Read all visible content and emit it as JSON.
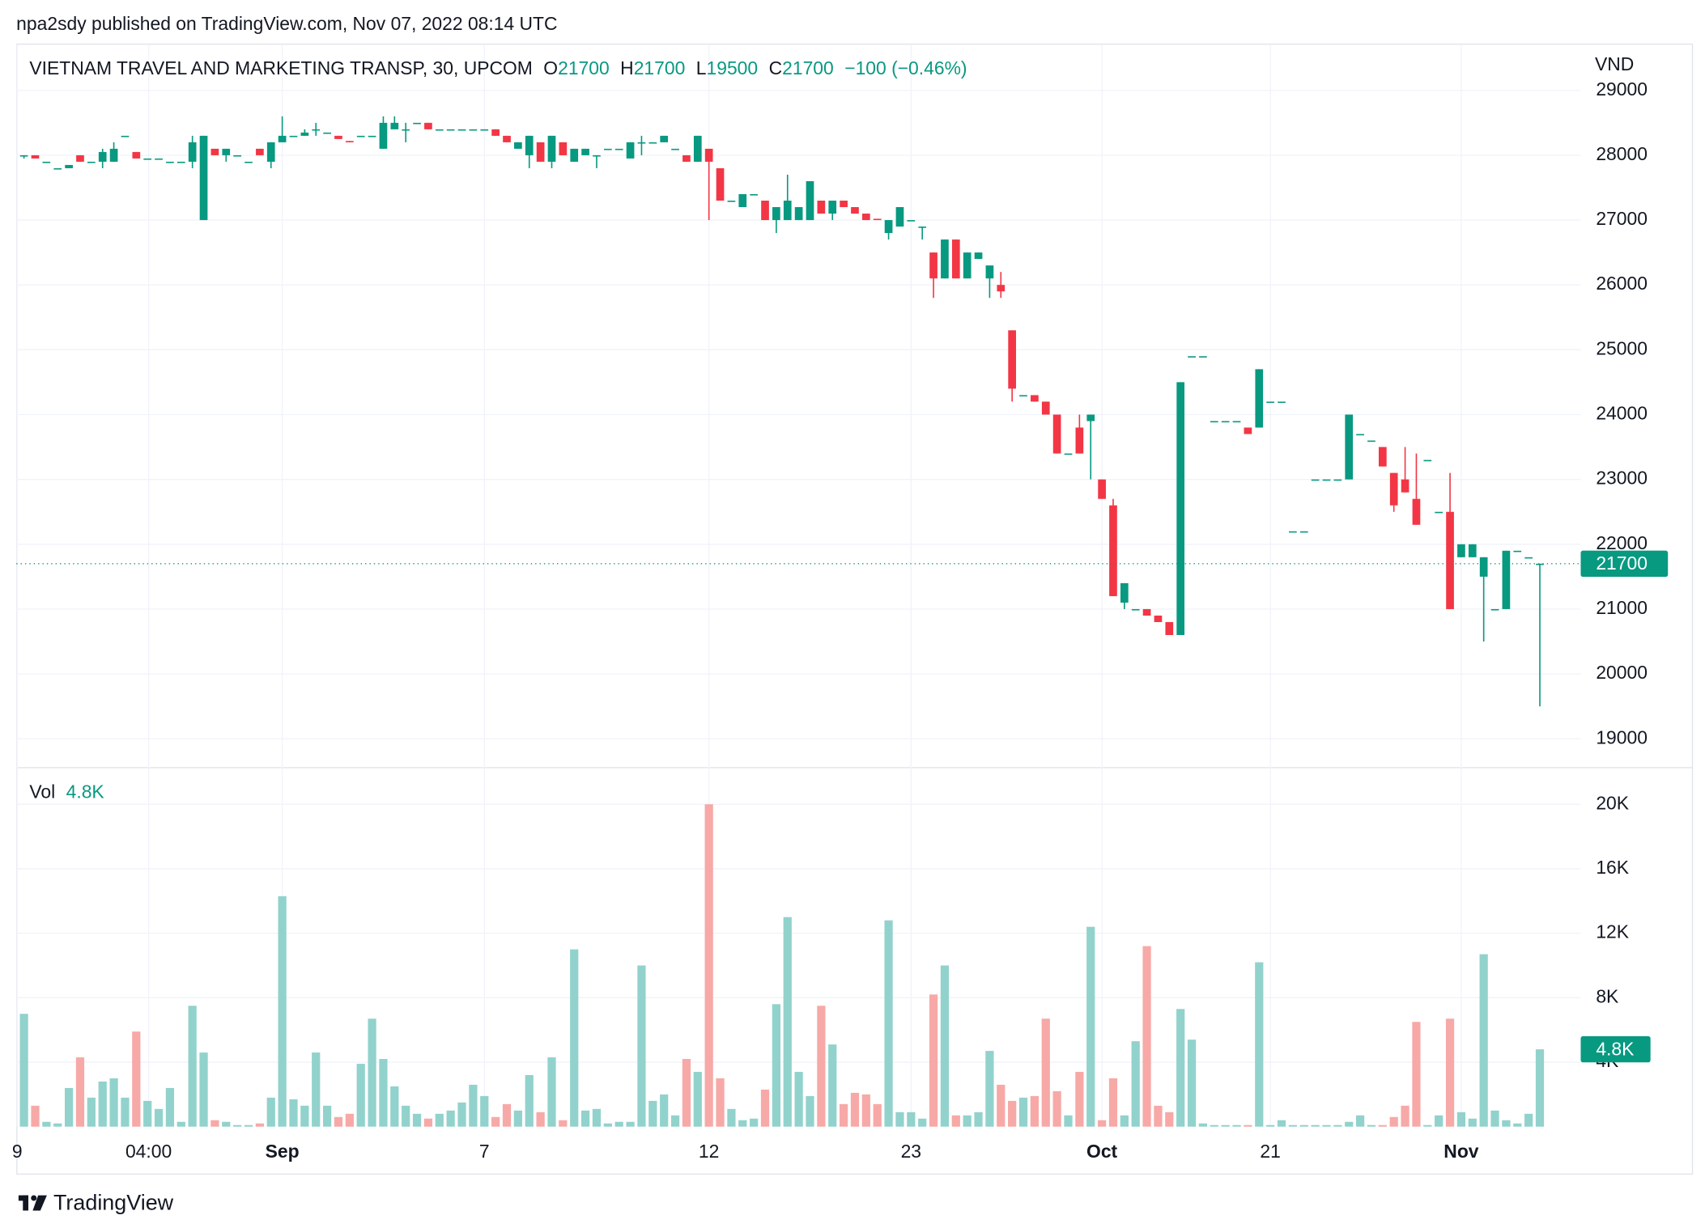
{
  "header": {
    "published": "npa2sdy published on TradingView.com, Nov 07, 2022 08:14 UTC"
  },
  "footer": {
    "brand": "TradingView"
  },
  "chart_data": {
    "type": "candlestick",
    "title": "VIETNAM TRAVEL AND MARKETING TRANSP, 30, UPCOM",
    "legend_values": [
      {
        "key": "O",
        "value": 21700
      },
      {
        "key": "H",
        "value": 21700
      },
      {
        "key": "L",
        "value": 19500
      },
      {
        "key": "C",
        "value": 21700
      }
    ],
    "change": "−100 (−0.46%)",
    "y_label": "VND",
    "up_color": "#089981",
    "down_color": "#f23645",
    "grid": true,
    "xlim": [
      -0.68,
      138.64
    ],
    "xticks": [
      {
        "value": -0.6,
        "label": "9"
      },
      {
        "value": 11.1,
        "label": "04:00"
      },
      {
        "value": 23,
        "label": "Sep",
        "bold": true
      },
      {
        "value": 41,
        "label": "7"
      },
      {
        "value": 61,
        "label": "12"
      },
      {
        "value": 79,
        "label": "23"
      },
      {
        "value": 96,
        "label": "Oct",
        "bold": true
      },
      {
        "value": 111,
        "label": "21"
      },
      {
        "value": 128,
        "label": "Nov",
        "bold": true
      }
    ],
    "ylim": [
      18580,
      29134
    ],
    "yticks": [
      19000,
      20000,
      21000,
      22000,
      23000,
      24000,
      25000,
      26000,
      27000,
      28000,
      29000
    ],
    "candles": {
      "open": [
        28000,
        28000,
        27900,
        27800,
        27800,
        28000,
        27900,
        27900,
        27900,
        28300,
        28050,
        27950,
        27950,
        27900,
        27900,
        27900,
        27000,
        28100,
        28000,
        28000,
        27900,
        28100,
        27900,
        28200,
        28300,
        28300,
        28400,
        28350,
        28300,
        28220,
        28300,
        28300,
        28100,
        28400,
        28400,
        28500,
        28500,
        28400,
        28400,
        28400,
        28400,
        28400,
        28400,
        28300,
        28100,
        28000,
        28200,
        27900,
        28200,
        27900,
        28000,
        28000,
        28100,
        28100,
        27950,
        28200,
        28200,
        28200,
        28100,
        28000,
        27900,
        28100,
        27800,
        27300,
        27200,
        27400,
        27300,
        27000,
        27000,
        27000,
        27000,
        27300,
        27100,
        27300,
        27200,
        27100,
        27020,
        26800,
        26900,
        27000,
        26900,
        26500,
        26100,
        26700,
        26100,
        26400,
        26100,
        26000,
        25300,
        24300,
        24300,
        24200,
        24000,
        23400,
        23800,
        23900,
        23000,
        22600,
        21100,
        21000,
        21000,
        20900,
        20800,
        20600,
        24900,
        24900,
        23900,
        23900,
        23900,
        23800,
        23800,
        24200,
        24200,
        22200,
        22200,
        23000,
        23000,
        23000,
        23000,
        23700,
        23600,
        23500,
        23100,
        23000,
        22700,
        23300,
        22500,
        22500,
        21800,
        21800,
        21500,
        21000,
        21000,
        21900,
        21800,
        21700
      ],
      "high": [
        28000,
        28000,
        27900,
        27800,
        27850,
        28000,
        27900,
        28100,
        28200,
        28300,
        28050,
        27950,
        27950,
        27900,
        27900,
        28300,
        28300,
        28100,
        28100,
        28000,
        27900,
        28100,
        28200,
        28600,
        28300,
        28400,
        28500,
        28350,
        28300,
        28220,
        28300,
        28300,
        28600,
        28600,
        28500,
        28500,
        28500,
        28400,
        28400,
        28400,
        28400,
        28400,
        28400,
        28300,
        28200,
        28300,
        28200,
        28300,
        28200,
        28100,
        28100,
        28000,
        28100,
        28100,
        28200,
        28300,
        28200,
        28300,
        28100,
        28000,
        28300,
        28100,
        27800,
        27300,
        27400,
        27400,
        27300,
        27200,
        27700,
        27200,
        27600,
        27300,
        27300,
        27300,
        27200,
        27100,
        27020,
        27000,
        27200,
        27000,
        26900,
        26500,
        26700,
        26700,
        26500,
        26500,
        26300,
        26200,
        25300,
        24300,
        24300,
        24200,
        24000,
        23400,
        24000,
        24000,
        23000,
        22700,
        21400,
        21000,
        21000,
        20900,
        20800,
        24500,
        24900,
        24900,
        23900,
        23900,
        23900,
        23800,
        24700,
        24200,
        24200,
        22200,
        22200,
        23000,
        23000,
        23000,
        24000,
        23700,
        23600,
        23500,
        23100,
        23500,
        23400,
        23300,
        22500,
        23100,
        22000,
        22000,
        21800,
        21000,
        21900,
        21900,
        21800,
        21700
      ],
      "low": [
        27950,
        27950,
        27900,
        27800,
        27800,
        27900,
        27900,
        27800,
        27900,
        28300,
        27950,
        27950,
        27950,
        27900,
        27900,
        27800,
        27000,
        28000,
        27900,
        28000,
        27900,
        28000,
        27800,
        28200,
        28300,
        28300,
        28300,
        28350,
        28250,
        28200,
        28300,
        28300,
        28100,
        28400,
        28200,
        28500,
        28400,
        28400,
        28400,
        28400,
        28400,
        28400,
        28300,
        28200,
        28100,
        27800,
        27900,
        27800,
        28000,
        27900,
        28000,
        27800,
        28100,
        28100,
        27950,
        28000,
        28200,
        28200,
        28100,
        27900,
        27900,
        27000,
        27300,
        27300,
        27200,
        27400,
        27000,
        26800,
        27000,
        27000,
        27000,
        27100,
        27000,
        27200,
        27100,
        27000,
        27000,
        26700,
        26900,
        27000,
        26700,
        25800,
        26100,
        26100,
        26100,
        26400,
        25800,
        25800,
        24200,
        24300,
        24200,
        24000,
        23400,
        23400,
        23400,
        23000,
        22700,
        21200,
        21000,
        21000,
        20900,
        20800,
        20600,
        20600,
        24900,
        24900,
        23900,
        23900,
        23900,
        23700,
        23800,
        24200,
        24200,
        22200,
        22200,
        23000,
        23000,
        23000,
        23000,
        23700,
        23600,
        23200,
        22500,
        22800,
        22300,
        23300,
        22500,
        21000,
        21800,
        21800,
        20500,
        21000,
        21000,
        21900,
        21800,
        19500
      ],
      "close": [
        28000,
        27950,
        27900,
        27800,
        27850,
        27900,
        27900,
        28050,
        28100,
        28300,
        27950,
        27950,
        27950,
        27900,
        27900,
        28200,
        28300,
        28000,
        28100,
        28000,
        27900,
        28000,
        28200,
        28300,
        28300,
        28350,
        28400,
        28350,
        28250,
        28200,
        28300,
        28300,
        28500,
        28500,
        28400,
        28500,
        28400,
        28400,
        28400,
        28400,
        28400,
        28400,
        28300,
        28200,
        28200,
        28300,
        27900,
        28300,
        28000,
        28100,
        28100,
        28000,
        28100,
        28100,
        28200,
        28200,
        28200,
        28300,
        28100,
        27900,
        28300,
        27900,
        27300,
        27300,
        27400,
        27400,
        27000,
        27200,
        27300,
        27200,
        27600,
        27100,
        27300,
        27200,
        27100,
        27000,
        27000,
        27000,
        27200,
        27000,
        26900,
        26100,
        26700,
        26100,
        26500,
        26500,
        26300,
        25900,
        24400,
        24300,
        24200,
        24000,
        23400,
        23400,
        23400,
        24000,
        22700,
        21200,
        21400,
        21000,
        20900,
        20800,
        20600,
        24500,
        24900,
        24900,
        23900,
        23900,
        23900,
        23700,
        24700,
        24200,
        24200,
        22200,
        22200,
        23000,
        23000,
        23000,
        24000,
        23700,
        23600,
        23200,
        22600,
        22800,
        22300,
        23300,
        22500,
        21000,
        22000,
        22000,
        21800,
        21000,
        21900,
        21900,
        21800,
        21700
      ]
    },
    "volume": {
      "name": "Vol",
      "last_label": "4.8K",
      "up_color": "#92d2cc",
      "down_color": "#f7a9a7",
      "ylim": [
        0,
        22240
      ],
      "yticks": [
        {
          "value": 4000,
          "label": "4K"
        },
        {
          "value": 8000,
          "label": "8K"
        },
        {
          "value": 12000,
          "label": "12K"
        },
        {
          "value": 16000,
          "label": "16K"
        },
        {
          "value": 20000,
          "label": "20K"
        }
      ],
      "values": [
        7000,
        1300,
        300,
        200,
        2400,
        4300,
        1800,
        2800,
        3000,
        1800,
        5900,
        1600,
        1100,
        2400,
        300,
        7500,
        4600,
        400,
        300,
        100,
        100,
        200,
        1800,
        14300,
        1700,
        1300,
        4600,
        1300,
        600,
        800,
        3900,
        6700,
        4200,
        2500,
        1300,
        800,
        500,
        800,
        1000,
        1500,
        2600,
        1900,
        600,
        1400,
        1000,
        3200,
        900,
        4300,
        400,
        11000,
        1000,
        1100,
        200,
        300,
        300,
        10000,
        1600,
        2000,
        700,
        4200,
        3400,
        20000,
        3000,
        1100,
        400,
        500,
        2300,
        7600,
        13000,
        3400,
        1900,
        7500,
        5100,
        1400,
        2100,
        2000,
        1400,
        12800,
        900,
        900,
        500,
        8200,
        10000,
        700,
        700,
        900,
        4700,
        2600,
        1600,
        1800,
        1900,
        6700,
        2200,
        700,
        3400,
        12400,
        400,
        3000,
        700,
        5300,
        11200,
        1300,
        900,
        7300,
        5400,
        200,
        100,
        100,
        100,
        100,
        10200,
        100,
        400,
        100,
        100,
        100,
        100,
        100,
        300,
        700,
        100,
        100,
        600,
        1300,
        6500,
        100,
        700,
        6700,
        900,
        500,
        10700,
        1000,
        400,
        200,
        800,
        4800
      ]
    }
  }
}
